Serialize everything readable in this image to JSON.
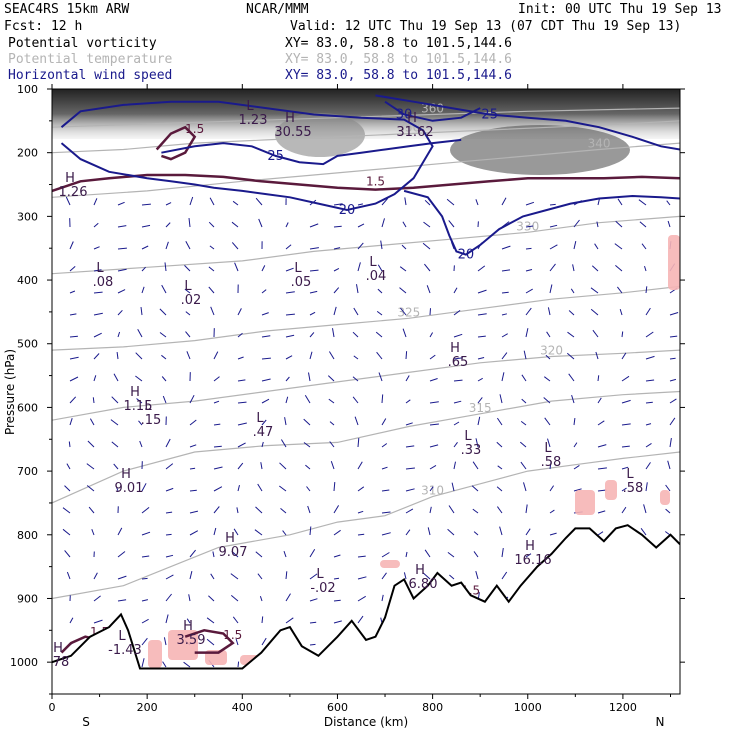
{
  "header": {
    "model": "SEAC4RS 15km ARW",
    "center": "NCAR/MMM",
    "init": "Init: 00 UTC Thu 19 Sep 13",
    "fcst": "Fcst:   12 h",
    "valid": "Valid: 12 UTC Thu 19 Sep 13 (07 CDT Thu 19 Sep 13)",
    "fields": [
      {
        "name": "Potential vorticity",
        "xy": "XY=  83.0, 58.8 to 101.5,144.6",
        "color": "#000000"
      },
      {
        "name": "Potential temperature",
        "xy": "XY=  83.0, 58.8 to 101.5,144.6",
        "color": "#b4b4b4"
      },
      {
        "name": "Horizontal wind speed",
        "xy": "XY=  83.0, 58.8 to 101.5,144.6",
        "color": "#1a1a8c"
      }
    ]
  },
  "chart_data": {
    "type": "cross-section",
    "xlabel": "Distance (km)",
    "ylabel": "Pressure (hPa)",
    "xlim": [
      0,
      1320
    ],
    "ylim": [
      1050,
      100
    ],
    "x_ticks": [
      0,
      200,
      400,
      600,
      800,
      1000,
      1200
    ],
    "y_ticks": [
      100,
      200,
      300,
      400,
      500,
      600,
      700,
      800,
      900,
      1000
    ],
    "x_end_labels": {
      "left": "S",
      "right": "N"
    },
    "terrain": [
      [
        0,
        1000
      ],
      [
        40,
        990
      ],
      [
        80,
        960
      ],
      [
        120,
        945
      ],
      [
        145,
        925
      ],
      [
        160,
        950
      ],
      [
        185,
        1010
      ],
      [
        400,
        1010
      ],
      [
        440,
        985
      ],
      [
        480,
        950
      ],
      [
        500,
        945
      ],
      [
        525,
        975
      ],
      [
        560,
        990
      ],
      [
        600,
        960
      ],
      [
        630,
        935
      ],
      [
        660,
        965
      ],
      [
        680,
        960
      ],
      [
        700,
        930
      ],
      [
        720,
        880
      ],
      [
        740,
        870
      ],
      [
        760,
        900
      ],
      [
        790,
        880
      ],
      [
        810,
        860
      ],
      [
        840,
        880
      ],
      [
        860,
        875
      ],
      [
        880,
        895
      ],
      [
        910,
        905
      ],
      [
        935,
        880
      ],
      [
        960,
        905
      ],
      [
        985,
        880
      ],
      [
        1020,
        850
      ],
      [
        1050,
        830
      ],
      [
        1080,
        805
      ],
      [
        1100,
        790
      ],
      [
        1130,
        790
      ],
      [
        1160,
        810
      ],
      [
        1185,
        790
      ],
      [
        1210,
        785
      ],
      [
        1240,
        800
      ],
      [
        1270,
        820
      ],
      [
        1300,
        800
      ],
      [
        1320,
        815
      ]
    ],
    "theta_lines": [
      {
        "label": "310",
        "points": [
          [
            0,
            900
          ],
          [
            150,
            880
          ],
          [
            250,
            850
          ],
          [
            350,
            820
          ],
          [
            500,
            800
          ],
          [
            600,
            780
          ],
          [
            700,
            770
          ],
          [
            800,
            740
          ],
          [
            900,
            720
          ],
          [
            1000,
            700
          ],
          [
            1100,
            690
          ],
          [
            1200,
            680
          ],
          [
            1320,
            670
          ]
        ]
      },
      {
        "label": "315",
        "points": [
          [
            0,
            750
          ],
          [
            150,
            700
          ],
          [
            300,
            670
          ],
          [
            450,
            660
          ],
          [
            600,
            655
          ],
          [
            750,
            630
          ],
          [
            900,
            610
          ],
          [
            1050,
            590
          ],
          [
            1200,
            580
          ],
          [
            1320,
            575
          ]
        ]
      },
      {
        "label": "320",
        "points": [
          [
            0,
            620
          ],
          [
            150,
            600
          ],
          [
            300,
            590
          ],
          [
            450,
            575
          ],
          [
            600,
            560
          ],
          [
            750,
            545
          ],
          [
            900,
            530
          ],
          [
            1050,
            520
          ],
          [
            1200,
            515
          ],
          [
            1320,
            510
          ]
        ]
      },
      {
        "label": "325",
        "points": [
          [
            0,
            510
          ],
          [
            150,
            505
          ],
          [
            300,
            495
          ],
          [
            450,
            480
          ],
          [
            600,
            470
          ],
          [
            750,
            460
          ],
          [
            900,
            445
          ],
          [
            1050,
            430
          ],
          [
            1200,
            420
          ],
          [
            1320,
            410
          ]
        ]
      },
      {
        "label": "330",
        "points": [
          [
            0,
            390
          ],
          [
            200,
            380
          ],
          [
            400,
            370
          ],
          [
            550,
            355
          ],
          [
            700,
            345
          ],
          [
            850,
            335
          ],
          [
            1000,
            325
          ],
          [
            1150,
            310
          ],
          [
            1320,
            300
          ]
        ]
      },
      {
        "label": "340",
        "points": [
          [
            0,
            270
          ],
          [
            200,
            260
          ],
          [
            400,
            245
          ],
          [
            550,
            235
          ],
          [
            700,
            225
          ],
          [
            850,
            215
          ],
          [
            1000,
            205
          ],
          [
            1150,
            195
          ],
          [
            1320,
            185
          ]
        ]
      },
      {
        "label": "350",
        "points": [
          [
            0,
            200
          ],
          [
            150,
            195
          ],
          [
            300,
            185
          ],
          [
            450,
            180
          ],
          [
            600,
            175
          ],
          [
            750,
            170
          ],
          [
            900,
            165
          ],
          [
            1050,
            160
          ],
          [
            1200,
            155
          ],
          [
            1320,
            150
          ]
        ]
      },
      {
        "label": "360",
        "points": [
          [
            0,
            160
          ],
          [
            200,
            155
          ],
          [
            400,
            150
          ],
          [
            600,
            145
          ],
          [
            800,
            140
          ],
          [
            1000,
            135
          ],
          [
            1320,
            130
          ]
        ]
      }
    ],
    "wind_speed_contours": [
      {
        "label": "20",
        "points": [
          [
            20,
            160
          ],
          [
            60,
            135
          ],
          [
            150,
            125
          ],
          [
            250,
            120
          ],
          [
            350,
            120
          ],
          [
            450,
            130
          ],
          [
            550,
            140
          ],
          [
            650,
            145
          ],
          [
            740,
            148
          ],
          [
            780,
            165
          ],
          [
            800,
            190
          ],
          [
            760,
            240
          ],
          [
            720,
            265
          ],
          [
            680,
            280
          ],
          [
            620,
            290
          ],
          [
            560,
            280
          ],
          [
            500,
            270
          ],
          [
            450,
            265
          ],
          [
            400,
            260
          ],
          [
            340,
            255
          ],
          [
            300,
            250
          ],
          [
            250,
            245
          ],
          [
            200,
            240
          ],
          [
            120,
            230
          ],
          [
            60,
            210
          ],
          [
            20,
            185
          ]
        ]
      },
      {
        "label": "20",
        "points": [
          [
            740,
            260
          ],
          [
            790,
            270
          ],
          [
            820,
            300
          ],
          [
            835,
            330
          ],
          [
            850,
            355
          ],
          [
            870,
            360
          ],
          [
            900,
            345
          ],
          [
            940,
            320
          ],
          [
            990,
            300
          ],
          [
            1040,
            290
          ],
          [
            1090,
            280
          ],
          [
            1150,
            272
          ],
          [
            1220,
            268
          ],
          [
            1280,
            270
          ],
          [
            1320,
            272
          ]
        ]
      },
      {
        "label": "25",
        "points": [
          [
            230,
            200
          ],
          [
            300,
            190
          ],
          [
            360,
            185
          ],
          [
            420,
            190
          ],
          [
            470,
            205
          ],
          [
            520,
            215
          ],
          [
            570,
            218
          ],
          [
            600,
            205
          ],
          [
            650,
            200
          ],
          [
            700,
            195
          ],
          [
            750,
            190
          ],
          [
            800,
            185
          ],
          [
            860,
            180
          ]
        ]
      },
      {
        "label": "25",
        "points": [
          [
            680,
            110
          ],
          [
            760,
            120
          ],
          [
            840,
            130
          ],
          [
            920,
            140
          ],
          [
            1000,
            145
          ],
          [
            1080,
            150
          ],
          [
            1150,
            160
          ],
          [
            1220,
            175
          ],
          [
            1280,
            190
          ],
          [
            1320,
            195
          ]
        ]
      },
      {
        "label": "30",
        "points": [
          [
            700,
            120
          ],
          [
            740,
            140
          ],
          [
            800,
            150
          ],
          [
            860,
            145
          ],
          [
            900,
            130
          ]
        ]
      }
    ],
    "pv_contours": [
      {
        "label": "1.5",
        "points": [
          [
            0,
            260
          ],
          [
            60,
            245
          ],
          [
            120,
            240
          ],
          [
            200,
            235
          ],
          [
            280,
            235
          ],
          [
            360,
            238
          ],
          [
            440,
            245
          ],
          [
            520,
            250
          ],
          [
            600,
            255
          ],
          [
            680,
            258
          ],
          [
            760,
            255
          ],
          [
            840,
            250
          ],
          [
            920,
            245
          ],
          [
            1000,
            240
          ],
          [
            1080,
            240
          ],
          [
            1160,
            240
          ],
          [
            1240,
            238
          ],
          [
            1320,
            240
          ]
        ]
      },
      {
        "label": "1.5",
        "points": [
          [
            220,
            195
          ],
          [
            250,
            170
          ],
          [
            280,
            160
          ],
          [
            300,
            175
          ],
          [
            280,
            200
          ],
          [
            250,
            210
          ],
          [
            230,
            205
          ]
        ]
      },
      {
        "label": "1.5",
        "points": [
          [
            20,
            985
          ],
          [
            40,
            970
          ],
          [
            70,
            960
          ],
          [
            100,
            965
          ],
          [
            130,
            975
          ],
          [
            150,
            990
          ]
        ]
      },
      {
        "label": "1.5",
        "points": [
          [
            280,
            960
          ],
          [
            320,
            950
          ],
          [
            360,
            955
          ],
          [
            380,
            970
          ],
          [
            350,
            985
          ],
          [
            300,
            985
          ]
        ]
      },
      {
        "label": "1.5",
        "points": [
          [
            800,
            905
          ],
          [
            830,
            890
          ],
          [
            860,
            880
          ],
          [
            880,
            900
          ],
          [
            860,
            915
          ],
          [
            820,
            920
          ]
        ]
      }
    ],
    "extremes": [
      {
        "type": "H",
        "value": "1.26"
      },
      {
        "type": "L",
        "value": "1.23"
      },
      {
        "type": "H",
        "value": "30.55"
      },
      {
        "type": "H",
        "value": "31.62"
      },
      {
        "type": "L",
        "value": ".08"
      },
      {
        "type": "L",
        "value": ".02"
      },
      {
        "type": "L",
        "value": ".05"
      },
      {
        "type": "L",
        "value": ".04"
      },
      {
        "type": "H",
        "value": ".65"
      },
      {
        "type": "H",
        "value": "1.15"
      },
      {
        "type": "L",
        "value": ".15"
      },
      {
        "type": "L",
        "value": ".47"
      },
      {
        "type": "L",
        "value": ".33"
      },
      {
        "type": "L",
        "value": ".58"
      },
      {
        "type": "L",
        "value": ".58"
      },
      {
        "type": "H",
        "value": "9.01"
      },
      {
        "type": "H",
        "value": "9.07"
      },
      {
        "type": "L",
        "value": "-.02"
      },
      {
        "type": "H",
        "value": "16.16"
      },
      {
        "type": "H",
        "value": "6.80"
      },
      {
        "type": "H",
        "value": "3.59"
      },
      {
        "type": "L",
        "value": "-1.43"
      },
      {
        "type": "H",
        "value": "78"
      }
    ]
  }
}
